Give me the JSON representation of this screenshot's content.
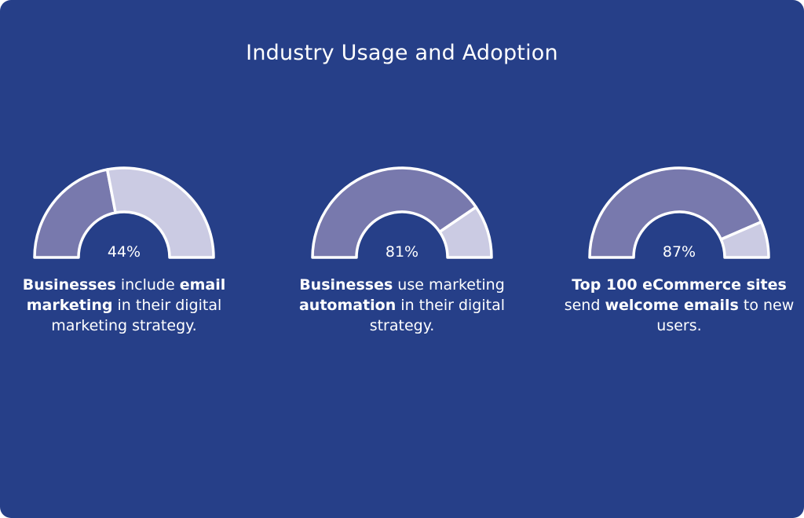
{
  "title": "Industry Usage and Adoption",
  "colors": {
    "background": "#263f88",
    "filled": "#7879ad",
    "remaining": "#cbcbe3",
    "outline": "#ffffff",
    "text": "#ffffff"
  },
  "chart_data": [
    {
      "type": "gauge",
      "value": 44,
      "max": 100,
      "label": "44%",
      "caption": [
        {
          "text": "Businesses",
          "bold": true
        },
        {
          "text": " include ",
          "bold": false
        },
        {
          "text": "email marketing",
          "bold": true
        },
        {
          "text": " in their digital marketing strategy.",
          "bold": false
        }
      ]
    },
    {
      "type": "gauge",
      "value": 81,
      "max": 100,
      "label": "81%",
      "caption": [
        {
          "text": "Businesses",
          "bold": true
        },
        {
          "text": " use marketing ",
          "bold": false
        },
        {
          "text": "automation",
          "bold": true
        },
        {
          "text": " in their digital strategy.",
          "bold": false
        }
      ]
    },
    {
      "type": "gauge",
      "value": 87,
      "max": 100,
      "label": "87%",
      "caption": [
        {
          "text": "Top 100 eCommerce sites",
          "bold": true
        },
        {
          "text": " send ",
          "bold": false
        },
        {
          "text": "welcome emails",
          "bold": true
        },
        {
          "text": " to new users.",
          "bold": false
        }
      ]
    }
  ]
}
